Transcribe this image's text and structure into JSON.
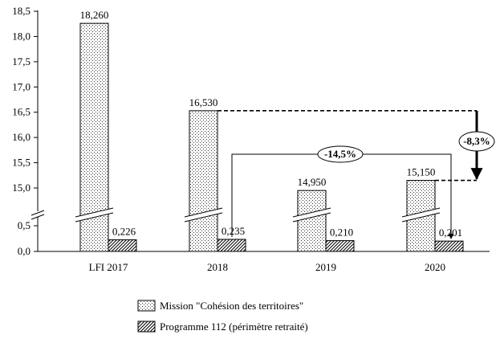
{
  "chart_data": {
    "type": "bar",
    "categories": [
      "LFI 2017",
      "2018",
      "2019",
      "2020"
    ],
    "series": [
      {
        "name": "Mission \"Cohésion des territoires\"",
        "values": [
          18.26,
          16.53,
          14.95,
          15.15
        ],
        "labels": [
          "18,260",
          "16,530",
          "14,950",
          "15,150"
        ],
        "pattern": "dots"
      },
      {
        "name": "Programme 112 (périmètre retraité)",
        "values": [
          0.226,
          0.235,
          0.21,
          0.201
        ],
        "labels": [
          "0,226",
          "0,235",
          "0,210",
          "0,201"
        ],
        "pattern": "hatch"
      }
    ],
    "y_axis": {
      "broken": true,
      "lower_range": [
        0,
        0.5
      ],
      "upper_range": [
        15,
        18.5
      ],
      "tick_labels_lower": [
        "0,0",
        "0,5"
      ],
      "tick_labels_upper": [
        "15,0",
        "15,5",
        "16,0",
        "16,5",
        "17,0",
        "17,5",
        "18,0",
        "18,5"
      ]
    },
    "annotations": [
      {
        "text": "-14,5%",
        "from": "2018",
        "to": "2020",
        "series": "Programme 112 (périmètre retraité)"
      },
      {
        "text": "-8,3%",
        "from": "2018",
        "to": "2020",
        "series": "Mission \"Cohésion des territoires\""
      }
    ],
    "legend_position": "bottom",
    "grid": false,
    "title": "",
    "xlabel": "",
    "ylabel": ""
  }
}
